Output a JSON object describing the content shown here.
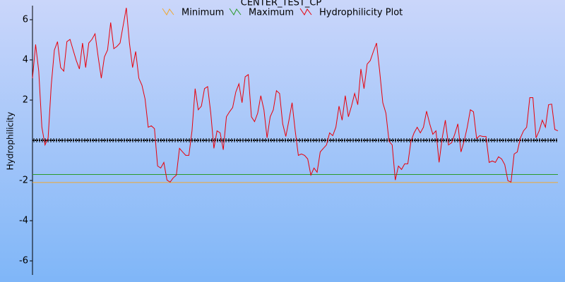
{
  "chart_data": {
    "type": "line",
    "title": "CENTER_TEST_CP",
    "y_label": "Hydrophilicity",
    "ylim": [
      -6.7,
      6.7
    ],
    "yticks": [
      -6,
      -4,
      -2,
      2,
      4,
      6
    ],
    "series": [
      {
        "name": "Minimum",
        "color": "#f0a830",
        "value": -2.1
      },
      {
        "name": "Maximum",
        "color": "#2a9a2a",
        "value": -1.7
      },
      {
        "name": "Hydrophilicity Plot",
        "color": "#e8000a",
        "values": [
          3.09,
          4.77,
          3.44,
          0.65,
          -0.23,
          0.12,
          2.74,
          4.49,
          4.91,
          3.62,
          3.44,
          4.91,
          5.02,
          4.49,
          3.97,
          3.55,
          4.84,
          3.62,
          4.84,
          5.02,
          5.3,
          4.15,
          3.09,
          4.15,
          4.49,
          5.86,
          4.56,
          4.67,
          4.84,
          5.72,
          6.59,
          4.84,
          3.62,
          4.42,
          3.09,
          2.74,
          2.05,
          0.65,
          0.72,
          0.58,
          -1.28,
          -1.38,
          -1.1,
          -1.98,
          -2.08,
          -1.87,
          -1.73,
          -0.4,
          -0.58,
          -0.75,
          -0.75,
          0.47,
          2.57,
          1.52,
          1.7,
          2.57,
          2.67,
          1.35,
          -0.4,
          0.47,
          0.37,
          -0.47,
          1.17,
          1.42,
          1.63,
          2.4,
          2.81,
          1.87,
          3.16,
          3.27,
          1.17,
          0.93,
          1.35,
          2.22,
          1.52,
          0.12,
          1.17,
          1.52,
          2.47,
          2.33,
          0.82,
          0.19,
          1.0,
          1.87,
          0.47,
          -0.75,
          -0.68,
          -0.75,
          -0.93,
          -1.73,
          -1.38,
          -1.59,
          -0.58,
          -0.4,
          -0.23,
          0.37,
          0.23,
          0.65,
          1.7,
          1.0,
          2.22,
          1.17,
          1.7,
          2.33,
          1.77,
          3.55,
          2.57,
          3.79,
          3.97,
          4.42,
          4.84,
          3.44,
          1.87,
          1.35,
          -0.05,
          -0.23,
          -1.98,
          -1.28,
          -1.45,
          -1.17,
          -1.17,
          -0.05,
          0.37,
          0.65,
          0.37,
          0.65,
          1.45,
          0.82,
          0.3,
          0.47,
          -1.1,
          0.12,
          1.0,
          -0.23,
          -0.12,
          0.3,
          0.82,
          -0.58,
          -0.05,
          0.65,
          1.52,
          1.42,
          0.09,
          0.23,
          0.19,
          0.19,
          -1.1,
          -1.03,
          -1.1,
          -0.82,
          -0.93,
          -1.21,
          -2.01,
          -2.08,
          -0.68,
          -0.58,
          0.12,
          0.47,
          0.65,
          2.12,
          2.12,
          0.12,
          0.47,
          1.0,
          0.65,
          1.77,
          1.8,
          0.54,
          0.47
        ]
      }
    ]
  }
}
